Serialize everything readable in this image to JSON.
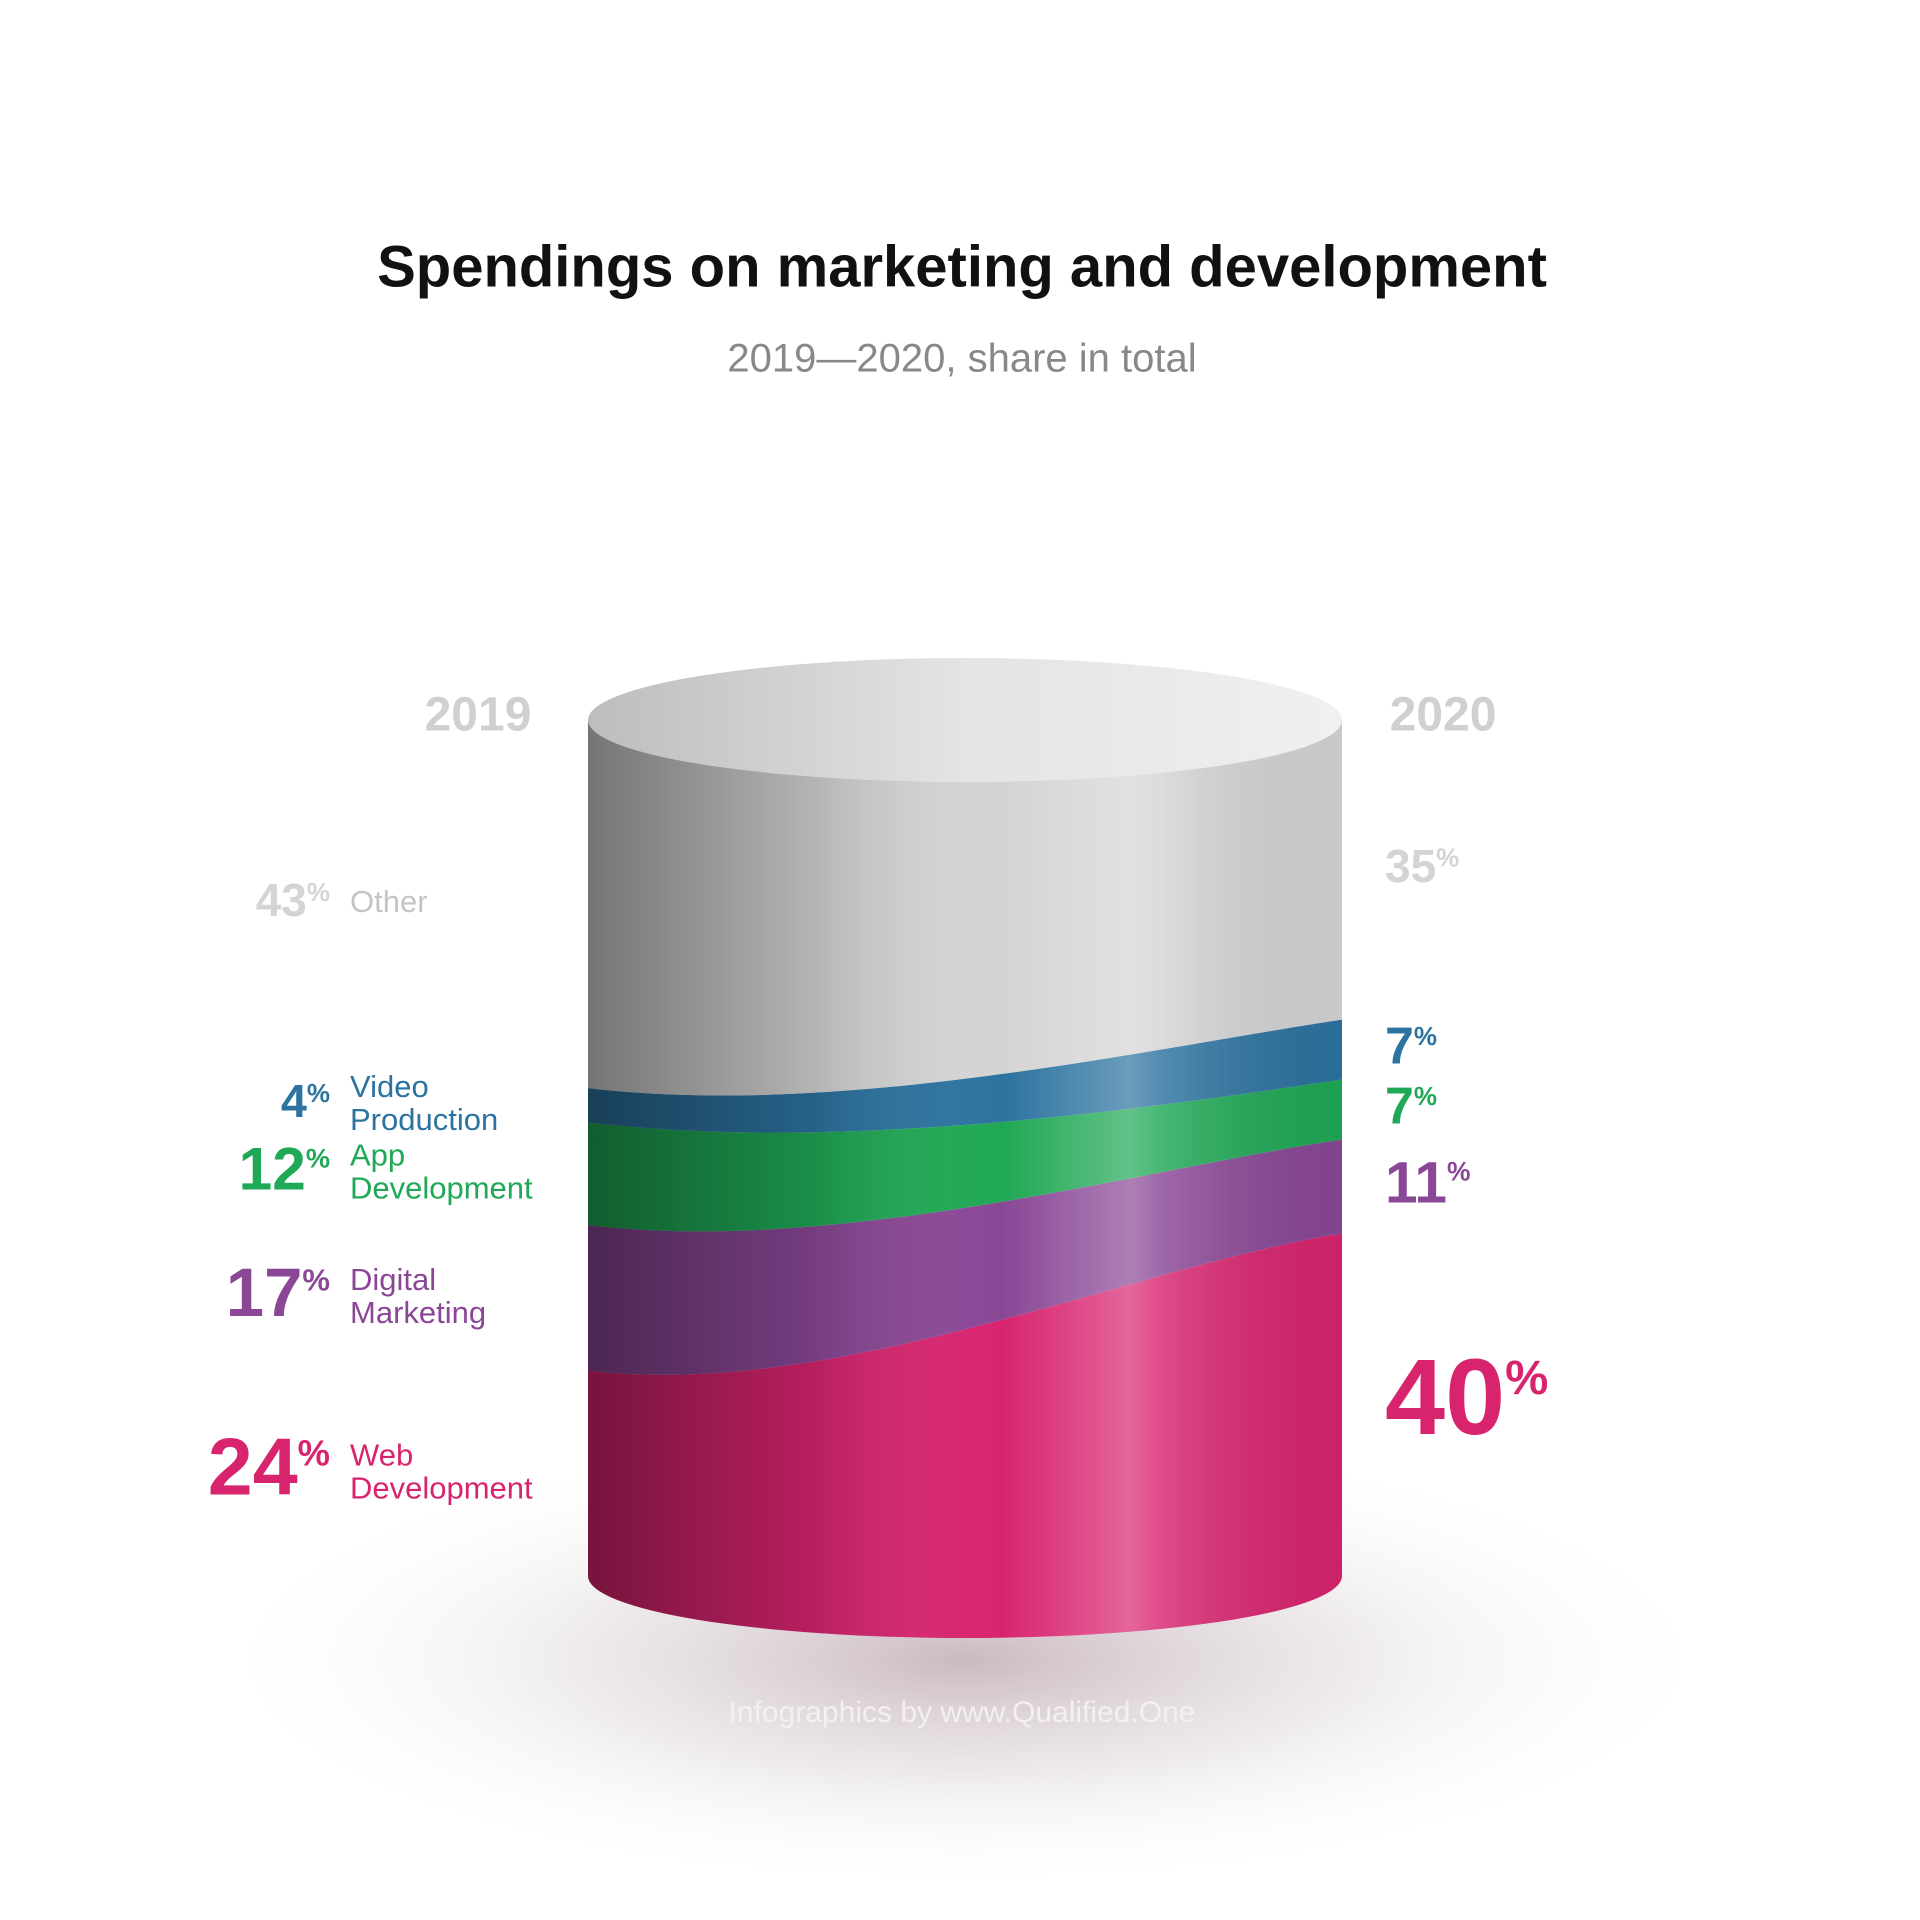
{
  "chart_data": {
    "type": "stacked-cylinder",
    "title": "Spendings on marketing and development",
    "subtitle": "2019—2020, share in total",
    "categories": [
      "2019",
      "2020"
    ],
    "series": [
      {
        "name": "Web Development",
        "color": "#d8246f",
        "values": [
          24,
          40
        ],
        "value_labels": [
          "24%",
          "40%"
        ]
      },
      {
        "name": "Digital Marketing",
        "color": "#8a4796",
        "values": [
          17,
          11
        ],
        "value_labels": [
          "17%",
          "11%"
        ]
      },
      {
        "name": "App Development",
        "color": "#1fa855",
        "values": [
          12,
          7
        ],
        "value_labels": [
          "12%",
          "7%"
        ]
      },
      {
        "name": "Video Production",
        "color": "#2c73a0",
        "values": [
          4,
          7
        ],
        "value_labels": [
          "4%",
          "7%"
        ]
      },
      {
        "name": "Other",
        "color": "#d4d4d4",
        "values": [
          43,
          35
        ],
        "value_labels": [
          "43%",
          "35%"
        ]
      }
    ],
    "footer": "Infographics by www.Qualified.One"
  }
}
